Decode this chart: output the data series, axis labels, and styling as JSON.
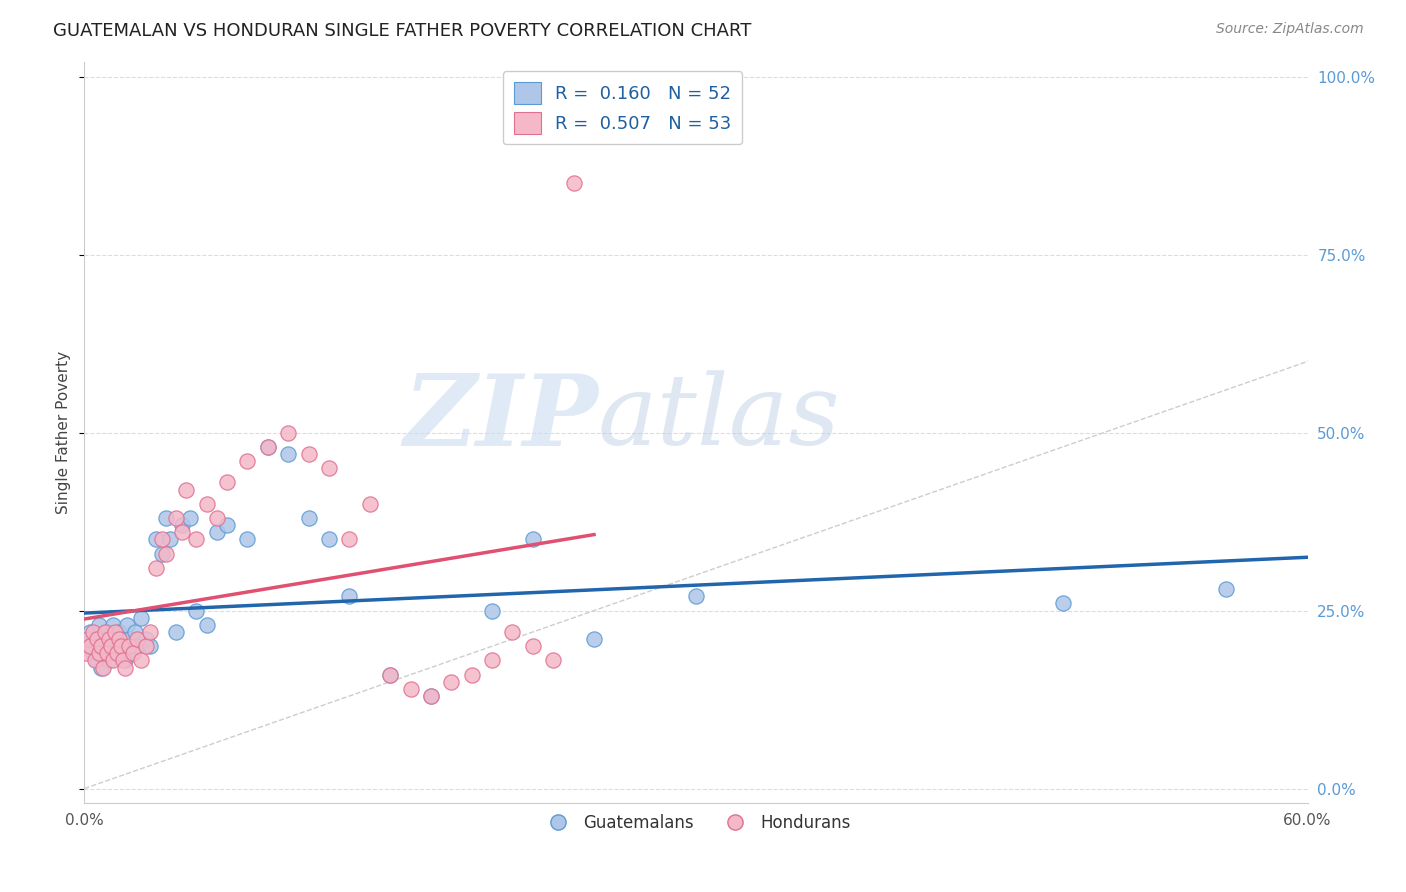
{
  "title": "GUATEMALAN VS HONDURAN SINGLE FATHER POVERTY CORRELATION CHART",
  "source": "Source: ZipAtlas.com",
  "ylabel": "Single Father Poverty",
  "xlim": [
    0.0,
    0.6
  ],
  "ylim": [
    -0.02,
    1.02
  ],
  "xtick_labels": [
    "0.0%",
    "",
    "",
    "",
    "",
    "",
    "60.0%"
  ],
  "xtick_vals": [
    0.0,
    0.1,
    0.2,
    0.3,
    0.4,
    0.5,
    0.6
  ],
  "ytick_vals": [
    0.0,
    0.25,
    0.5,
    0.75,
    1.0
  ],
  "ytick_labels_right": [
    "0.0%",
    "25.0%",
    "50.0%",
    "75.0%",
    "100.0%"
  ],
  "legend_line1": "R =  0.160   N = 52",
  "legend_line2": "R =  0.507   N = 53",
  "legend_label_blue": "Guatemalans",
  "legend_label_pink": "Hondurans",
  "watermark_zip": "ZIP",
  "watermark_atlas": "atlas",
  "blue_fill": "#aec6e8",
  "blue_edge": "#5b9bd5",
  "pink_fill": "#f4b8c8",
  "pink_edge": "#e07090",
  "blue_line_color": "#2166ac",
  "pink_line_color": "#e05070",
  "diag_color": "#c8c8c8",
  "grid_color": "#dddddd",
  "bg_color": "#ffffff",
  "guatemalan_x": [
    0.002,
    0.003,
    0.004,
    0.005,
    0.006,
    0.007,
    0.008,
    0.008,
    0.009,
    0.01,
    0.011,
    0.012,
    0.013,
    0.014,
    0.015,
    0.016,
    0.017,
    0.018,
    0.02,
    0.021,
    0.022,
    0.023,
    0.025,
    0.026,
    0.028,
    0.03,
    0.032,
    0.035,
    0.038,
    0.04,
    0.042,
    0.045,
    0.048,
    0.052,
    0.055,
    0.06,
    0.065,
    0.07,
    0.08,
    0.09,
    0.1,
    0.11,
    0.12,
    0.13,
    0.15,
    0.17,
    0.2,
    0.22,
    0.25,
    0.3,
    0.48,
    0.56
  ],
  "guatemalan_y": [
    0.2,
    0.22,
    0.19,
    0.21,
    0.18,
    0.23,
    0.2,
    0.17,
    0.21,
    0.19,
    0.22,
    0.18,
    0.2,
    0.23,
    0.19,
    0.21,
    0.22,
    0.2,
    0.18,
    0.23,
    0.21,
    0.19,
    0.22,
    0.2,
    0.24,
    0.21,
    0.2,
    0.35,
    0.33,
    0.38,
    0.35,
    0.22,
    0.37,
    0.38,
    0.25,
    0.23,
    0.36,
    0.37,
    0.35,
    0.48,
    0.47,
    0.38,
    0.35,
    0.27,
    0.16,
    0.13,
    0.25,
    0.35,
    0.21,
    0.27,
    0.26,
    0.28
  ],
  "honduran_x": [
    0.001,
    0.002,
    0.003,
    0.004,
    0.005,
    0.006,
    0.007,
    0.008,
    0.009,
    0.01,
    0.011,
    0.012,
    0.013,
    0.014,
    0.015,
    0.016,
    0.017,
    0.018,
    0.019,
    0.02,
    0.022,
    0.024,
    0.026,
    0.028,
    0.03,
    0.032,
    0.035,
    0.038,
    0.04,
    0.045,
    0.048,
    0.05,
    0.055,
    0.06,
    0.065,
    0.07,
    0.08,
    0.09,
    0.1,
    0.11,
    0.12,
    0.13,
    0.14,
    0.15,
    0.16,
    0.17,
    0.18,
    0.19,
    0.2,
    0.21,
    0.22,
    0.23,
    0.24
  ],
  "honduran_y": [
    0.19,
    0.21,
    0.2,
    0.22,
    0.18,
    0.21,
    0.19,
    0.2,
    0.17,
    0.22,
    0.19,
    0.21,
    0.2,
    0.18,
    0.22,
    0.19,
    0.21,
    0.2,
    0.18,
    0.17,
    0.2,
    0.19,
    0.21,
    0.18,
    0.2,
    0.22,
    0.31,
    0.35,
    0.33,
    0.38,
    0.36,
    0.42,
    0.35,
    0.4,
    0.38,
    0.43,
    0.46,
    0.48,
    0.5,
    0.47,
    0.45,
    0.35,
    0.4,
    0.16,
    0.14,
    0.13,
    0.15,
    0.16,
    0.18,
    0.22,
    0.2,
    0.18,
    0.85
  ]
}
